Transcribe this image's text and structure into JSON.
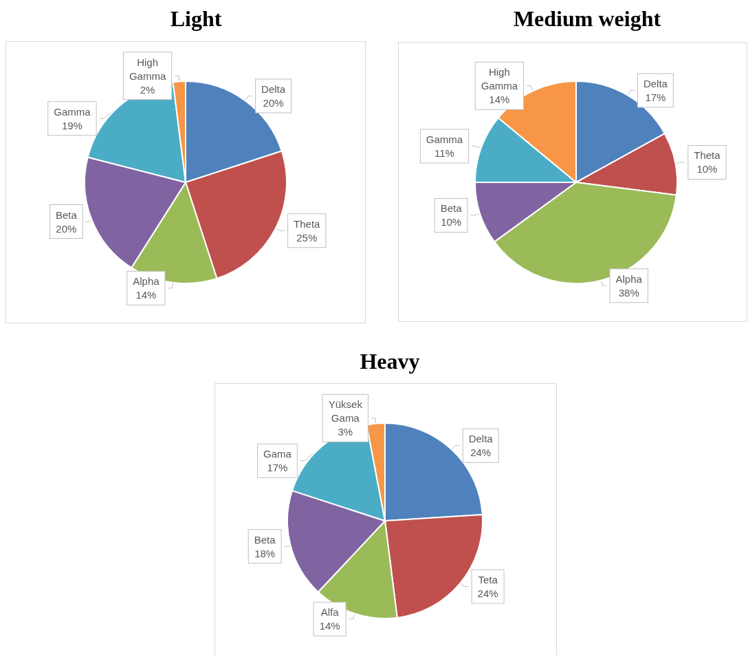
{
  "chart_data": [
    {
      "type": "pie",
      "title": "Light",
      "categories": [
        "Delta",
        "Theta",
        "Alpha",
        "Beta",
        "Gamma",
        "High Gamma"
      ],
      "values": [
        20,
        25,
        14,
        20,
        19,
        2
      ],
      "value_labels": [
        "20%",
        "25%",
        "14%",
        "20%",
        "19%",
        "2%"
      ],
      "colors": [
        "#4f81bd",
        "#c0504d",
        "#9bbb59",
        "#8064a2",
        "#4bacc6",
        "#f79646"
      ]
    },
    {
      "type": "pie",
      "title": "Medium weight",
      "categories": [
        "Delta",
        "Theta",
        "Alpha",
        "Beta",
        "Gamma",
        "High Gamma"
      ],
      "values": [
        17,
        10,
        38,
        10,
        11,
        14
      ],
      "value_labels": [
        "17%",
        "10%",
        "38%",
        "10%",
        "11%",
        "14%"
      ],
      "colors": [
        "#4f81bd",
        "#c0504d",
        "#9bbb59",
        "#8064a2",
        "#4bacc6",
        "#f79646"
      ]
    },
    {
      "type": "pie",
      "title": "Heavy",
      "categories": [
        "Delta",
        "Teta",
        "Alfa",
        "Beta",
        "Gama",
        "Yüksek Gama"
      ],
      "values": [
        24,
        24,
        14,
        18,
        17,
        3
      ],
      "value_labels": [
        "24%",
        "24%",
        "14%",
        "18%",
        "17%",
        "3%"
      ],
      "colors": [
        "#4f81bd",
        "#c0504d",
        "#9bbb59",
        "#8064a2",
        "#4bacc6",
        "#f79646"
      ]
    }
  ]
}
